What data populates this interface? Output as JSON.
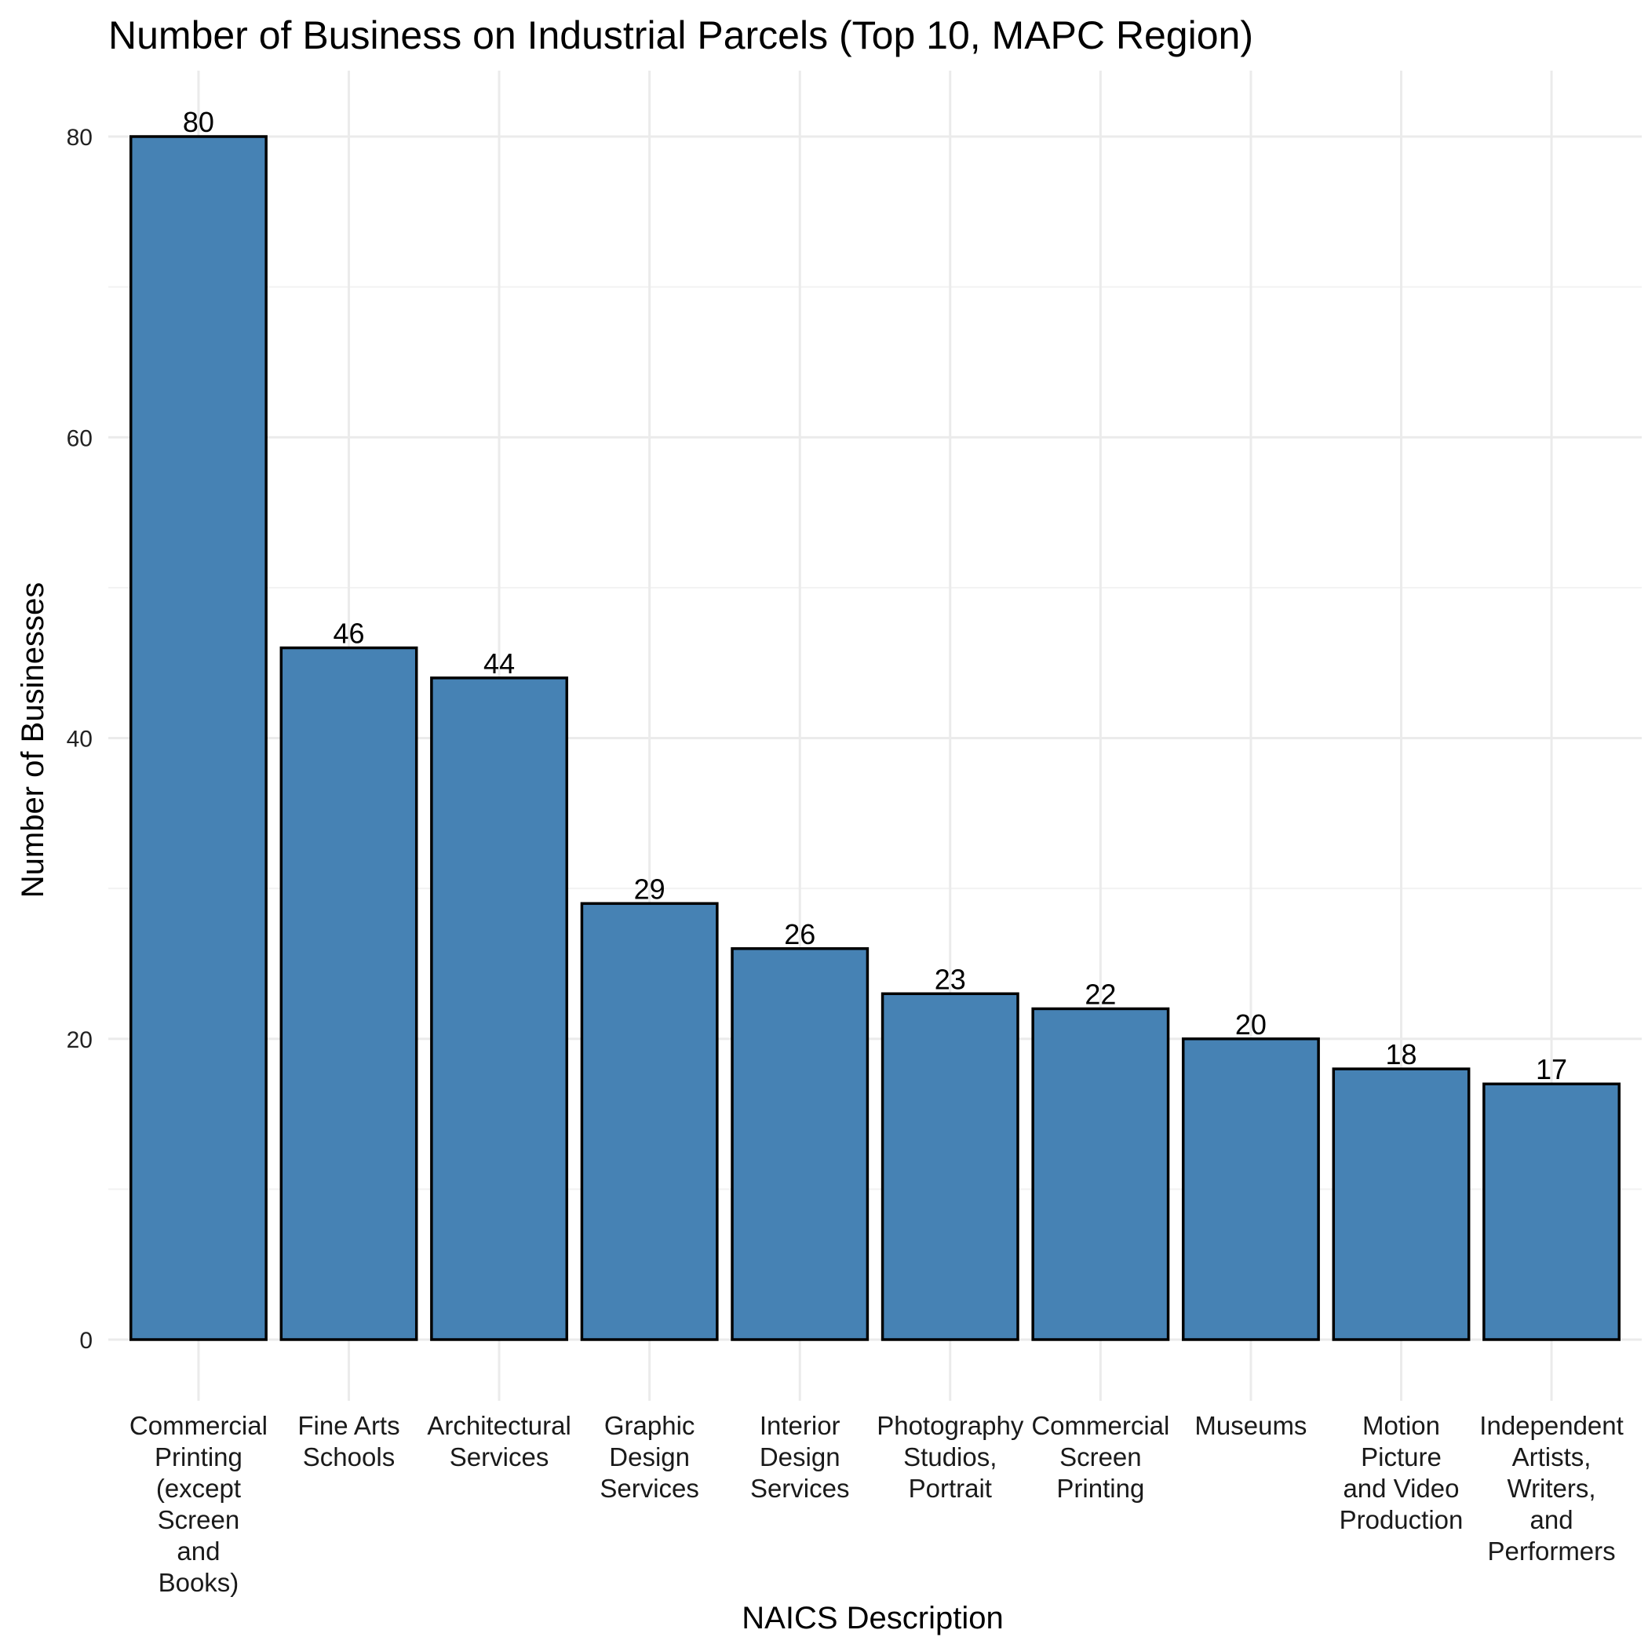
{
  "chart_data": {
    "type": "bar",
    "title": "Number of Business on Industrial Parcels (Top 10, MAPC Region)",
    "xlabel": "NAICS Description",
    "ylabel": "Number of Businesses",
    "categories": [
      [
        "Commercial",
        "Printing",
        "(except",
        "Screen",
        "and",
        "Books)"
      ],
      [
        "Fine Arts",
        "Schools"
      ],
      [
        "Architectural",
        "Services"
      ],
      [
        "Graphic",
        "Design",
        "Services"
      ],
      [
        "Interior",
        "Design",
        "Services"
      ],
      [
        "Photography",
        "Studios,",
        "Portrait"
      ],
      [
        "Commercial",
        "Screen",
        "Printing"
      ],
      [
        "Museums"
      ],
      [
        "Motion",
        "Picture",
        "and Video",
        "Production"
      ],
      [
        "Independent",
        "Artists,",
        "Writers,",
        "and",
        "Performers"
      ]
    ],
    "values": [
      80,
      46,
      44,
      29,
      26,
      23,
      22,
      20,
      18,
      17
    ],
    "ylim": [
      -3.5,
      84
    ],
    "yticks": [
      0,
      20,
      40,
      60,
      80
    ],
    "grid": true,
    "legend": "none",
    "bar_color": "#4682b4",
    "bar_outline": "#000000"
  }
}
